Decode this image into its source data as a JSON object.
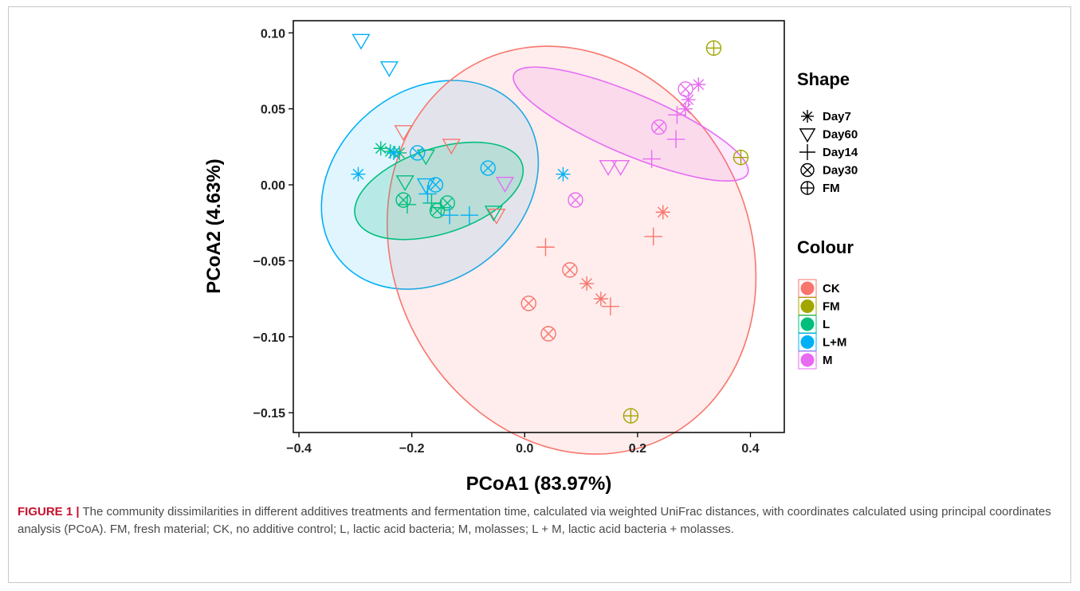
{
  "caption": {
    "lead": "FIGURE 1 |",
    "text": " The community dissimilarities in different additives treatments and fermentation time, calculated via weighted UniFrac distances, with coordinates calculated using principal coordinates analysis (PCoA). FM, fresh material; CK, no additive control; L, lactic acid bacteria; M, molasses; L + M, lactic acid bacteria + molasses."
  },
  "chart_data": {
    "type": "scatter",
    "xlabel": "PCoA1 (83.97%)",
    "ylabel": "PCoA2 (4.63%)",
    "xlim": [
      -0.41,
      0.46
    ],
    "ylim": [
      -0.163,
      0.108
    ],
    "xticks": [
      -0.4,
      -0.2,
      0.0,
      0.2,
      0.4
    ],
    "xtick_labels": [
      "−0.4",
      "−0.2",
      "0.0",
      "0.2",
      "0.4"
    ],
    "yticks": [
      -0.15,
      -0.1,
      -0.05,
      0.0,
      0.05,
      0.1
    ],
    "ytick_labels": [
      "−0.15",
      "−0.10",
      "−0.05",
      "0.00",
      "0.05",
      "0.10"
    ],
    "grid": false,
    "legend_position": "right",
    "shape_legend": {
      "title": "Shape",
      "items": [
        {
          "label": "Day7",
          "shape": "asterisk-icon"
        },
        {
          "label": "Day60",
          "shape": "triangle-down-icon"
        },
        {
          "label": "Day14",
          "shape": "plus-icon"
        },
        {
          "label": "Day30",
          "shape": "circle-x-icon"
        },
        {
          "label": "FM",
          "shape": "circle-plus-icon"
        }
      ]
    },
    "colour_legend": {
      "title": "Colour",
      "items": [
        {
          "label": "CK",
          "color": "#F8766D"
        },
        {
          "label": "FM",
          "color": "#A3A500"
        },
        {
          "label": "L",
          "color": "#00BF7D"
        },
        {
          "label": "L+M",
          "color": "#00B0F6"
        },
        {
          "label": "M",
          "color": "#E76BF3"
        }
      ]
    },
    "ellipses": [
      {
        "group": "L+M",
        "color": "#00B0F6",
        "cx": -0.168,
        "cy": 0.0,
        "rx": 0.208,
        "ry": 0.062,
        "angle_deg": -40,
        "fill_opacity": 0.12
      },
      {
        "group": "CK",
        "color": "#F8766D",
        "cx": 0.083,
        "cy": -0.043,
        "rx": 0.315,
        "ry": 0.138,
        "angle_deg": -26,
        "fill_opacity": 0.13
      },
      {
        "group": "L",
        "color": "#00BF7D",
        "cx": -0.152,
        "cy": -0.004,
        "rx": 0.155,
        "ry": 0.028,
        "angle_deg": -18,
        "fill_opacity": 0.18
      },
      {
        "group": "M",
        "color": "#E76BF3",
        "cx": 0.188,
        "cy": 0.04,
        "rx": 0.225,
        "ry": 0.02,
        "angle_deg": 23,
        "fill_opacity": 0.14
      }
    ],
    "series": [
      {
        "name": "CK",
        "color": "#F8766D",
        "points": [
          {
            "x": -0.215,
            "y": 0.035,
            "shape": "Day60"
          },
          {
            "x": -0.13,
            "y": 0.026,
            "shape": "Day60"
          },
          {
            "x": -0.05,
            "y": -0.02,
            "shape": "Day60"
          },
          {
            "x": 0.245,
            "y": -0.018,
            "shape": "Day7"
          },
          {
            "x": 0.11,
            "y": -0.065,
            "shape": "Day7"
          },
          {
            "x": 0.135,
            "y": -0.075,
            "shape": "Day7"
          },
          {
            "x": 0.228,
            "y": -0.034,
            "shape": "Day14"
          },
          {
            "x": 0.037,
            "y": -0.041,
            "shape": "Day14"
          },
          {
            "x": 0.152,
            "y": -0.08,
            "shape": "Day14"
          },
          {
            "x": 0.08,
            "y": -0.056,
            "shape": "Day30"
          },
          {
            "x": 0.007,
            "y": -0.078,
            "shape": "Day30"
          },
          {
            "x": 0.042,
            "y": -0.098,
            "shape": "Day30"
          }
        ]
      },
      {
        "name": "FM",
        "color": "#A3A500",
        "points": [
          {
            "x": 0.335,
            "y": 0.09,
            "shape": "FM"
          },
          {
            "x": 0.383,
            "y": 0.018,
            "shape": "FM"
          },
          {
            "x": 0.188,
            "y": -0.152,
            "shape": "FM"
          }
        ]
      },
      {
        "name": "L",
        "color": "#00BF7D",
        "points": [
          {
            "x": -0.255,
            "y": 0.024,
            "shape": "Day7"
          },
          {
            "x": -0.238,
            "y": 0.022,
            "shape": "Day7"
          },
          {
            "x": -0.222,
            "y": 0.021,
            "shape": "Day7"
          },
          {
            "x": -0.212,
            "y": 0.002,
            "shape": "Day60"
          },
          {
            "x": -0.175,
            "y": 0.019,
            "shape": "Day60"
          },
          {
            "x": -0.055,
            "y": -0.018,
            "shape": "Day60"
          },
          {
            "x": -0.165,
            "y": -0.012,
            "shape": "Day14"
          },
          {
            "x": -0.148,
            "y": -0.015,
            "shape": "Day14"
          },
          {
            "x": -0.208,
            "y": -0.013,
            "shape": "Day14"
          },
          {
            "x": -0.215,
            "y": -0.01,
            "shape": "Day30"
          },
          {
            "x": -0.155,
            "y": -0.017,
            "shape": "Day30"
          },
          {
            "x": -0.137,
            "y": -0.012,
            "shape": "Day30"
          }
        ]
      },
      {
        "name": "L+M",
        "color": "#00B0F6",
        "points": [
          {
            "x": -0.29,
            "y": 0.095,
            "shape": "Day60"
          },
          {
            "x": -0.24,
            "y": 0.077,
            "shape": "Day60"
          },
          {
            "x": -0.175,
            "y": 0.0,
            "shape": "Day60"
          },
          {
            "x": -0.295,
            "y": 0.007,
            "shape": "Day7"
          },
          {
            "x": -0.232,
            "y": 0.021,
            "shape": "Day7"
          },
          {
            "x": 0.068,
            "y": 0.007,
            "shape": "Day7"
          },
          {
            "x": -0.172,
            "y": -0.006,
            "shape": "Day14"
          },
          {
            "x": -0.133,
            "y": -0.02,
            "shape": "Day14"
          },
          {
            "x": -0.098,
            "y": -0.02,
            "shape": "Day14"
          },
          {
            "x": -0.19,
            "y": 0.021,
            "shape": "Day30"
          },
          {
            "x": -0.158,
            "y": 0.0,
            "shape": "Day30"
          },
          {
            "x": -0.065,
            "y": 0.011,
            "shape": "Day30"
          }
        ]
      },
      {
        "name": "M",
        "color": "#E76BF3",
        "points": [
          {
            "x": -0.035,
            "y": 0.001,
            "shape": "Day60"
          },
          {
            "x": 0.148,
            "y": 0.012,
            "shape": "Day60"
          },
          {
            "x": 0.17,
            "y": 0.012,
            "shape": "Day60"
          },
          {
            "x": 0.308,
            "y": 0.066,
            "shape": "Day7"
          },
          {
            "x": 0.29,
            "y": 0.056,
            "shape": "Day7"
          },
          {
            "x": 0.285,
            "y": 0.05,
            "shape": "Day7"
          },
          {
            "x": 0.225,
            "y": 0.017,
            "shape": "Day14"
          },
          {
            "x": 0.268,
            "y": 0.03,
            "shape": "Day14"
          },
          {
            "x": 0.27,
            "y": 0.046,
            "shape": "Day14"
          },
          {
            "x": 0.09,
            "y": -0.01,
            "shape": "Day30"
          },
          {
            "x": 0.238,
            "y": 0.038,
            "shape": "Day30"
          },
          {
            "x": 0.285,
            "y": 0.063,
            "shape": "Day30"
          }
        ]
      }
    ]
  }
}
